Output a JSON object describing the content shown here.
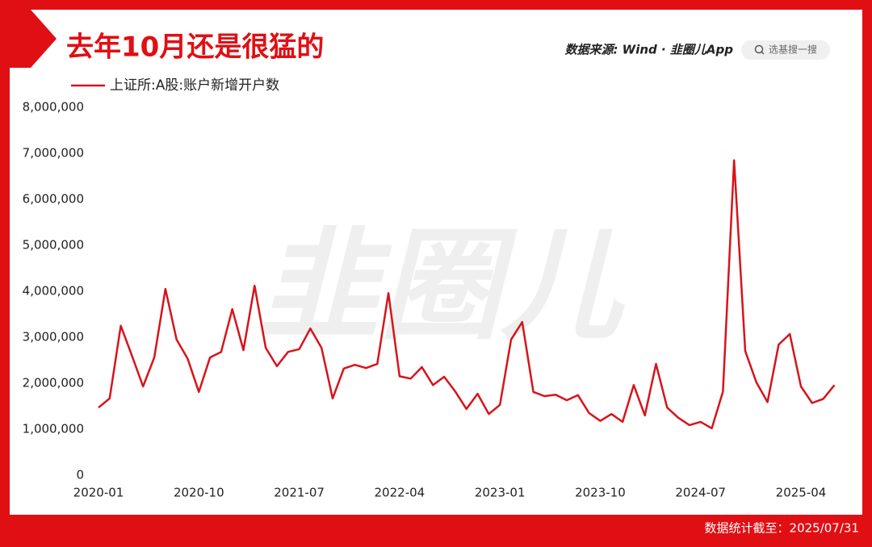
{
  "chart_data": {
    "type": "line",
    "title": "去年10月还是很猛的",
    "source": "数据来源: Wind · 韭圈儿App",
    "search_placeholder": "选基搜一搜",
    "watermark": "韭圈儿",
    "footnote": "数据统计截至：2025/07/31",
    "categories": [
      "2020-01",
      null,
      null,
      null,
      null,
      null,
      null,
      null,
      null,
      "2020-10",
      null,
      null,
      null,
      null,
      null,
      null,
      null,
      null,
      "2021-07",
      null,
      null,
      null,
      null,
      null,
      null,
      null,
      null,
      "2022-04",
      null,
      null,
      null,
      null,
      null,
      null,
      null,
      null,
      "2023-01",
      null,
      null,
      null,
      null,
      null,
      null,
      null,
      null,
      "2023-10",
      null,
      null,
      null,
      null,
      null,
      null,
      null,
      null,
      "2024-07",
      null,
      null,
      null,
      null,
      null,
      null,
      null,
      null,
      "2025-04",
      null,
      null,
      null
    ],
    "series": [
      {
        "name": "上证所:A股:账户新增开户数",
        "color": "#d7141a",
        "values": [
          1470000,
          1670000,
          3250000,
          2600000,
          1930000,
          2560000,
          4050000,
          2950000,
          2530000,
          1810000,
          2560000,
          2680000,
          3610000,
          2720000,
          4120000,
          2770000,
          2370000,
          2680000,
          2740000,
          3190000,
          2770000,
          1670000,
          2320000,
          2400000,
          2330000,
          2420000,
          3960000,
          2150000,
          2100000,
          2350000,
          1960000,
          2140000,
          1820000,
          1440000,
          1770000,
          1330000,
          1530000,
          2950000,
          3330000,
          1810000,
          1720000,
          1750000,
          1630000,
          1740000,
          1350000,
          1180000,
          1330000,
          1160000,
          1960000,
          1300000,
          2420000,
          1470000,
          1250000,
          1090000,
          1160000,
          1020000,
          1820000,
          6850000,
          2700000,
          2020000,
          1590000,
          2840000,
          3070000,
          1930000,
          1570000,
          1660000,
          1960000
        ]
      }
    ],
    "ylim": [
      0,
      8000000
    ],
    "yticks": [
      0,
      {
        "value": 1000000,
        "label": "1,000,000"
      },
      {
        "value": 2000000,
        "label": "2,000,000"
      },
      {
        "value": 3000000,
        "label": "3,000,000"
      },
      {
        "value": 4000000,
        "label": "4,000,000"
      },
      {
        "value": 5000000,
        "label": "5,000,000"
      },
      {
        "value": 6000000,
        "label": "6,000,000"
      },
      {
        "value": 7000000,
        "label": "7,000,000"
      },
      {
        "value": 8000000,
        "label": "8,000,000"
      }
    ],
    "grid": false
  }
}
